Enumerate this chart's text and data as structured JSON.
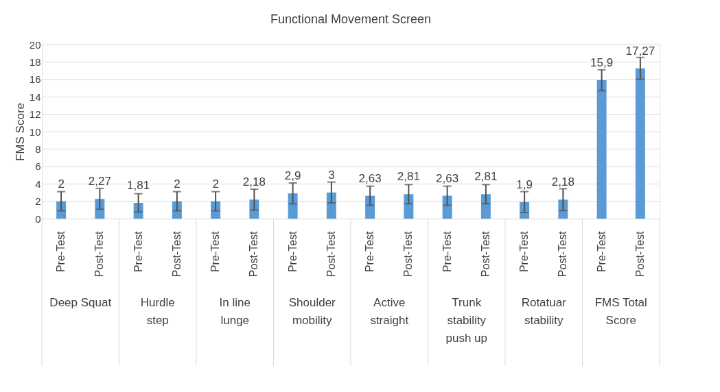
{
  "chart_data": {
    "type": "bar",
    "title": "Functional Movement Screen",
    "ylabel": "FMS Score",
    "categories": [
      "Pre-Test",
      "Post-Test",
      "Pre-Test",
      "Post-Test",
      "Pre-Test",
      "Post-Test",
      "Pre-Test",
      "Post-Test",
      "Pre-Test",
      "Post-Test",
      "Pre-Test",
      "Post-Test",
      "Pre-Test",
      "Post-Test",
      "Pre-Test",
      "Post-Test"
    ],
    "values": [
      2,
      2.27,
      1.81,
      2,
      2,
      2.18,
      2.9,
      3,
      2.63,
      2.81,
      2.63,
      2.81,
      1.9,
      2.18,
      15.9,
      17.27
    ],
    "value_labels": [
      "2",
      "2,27",
      "1,81",
      "2",
      "2",
      "2,18",
      "2,9",
      "3",
      "2,63",
      "2,81",
      "2,63",
      "2,81",
      "1,9",
      "2,18",
      "15,9",
      "17,27"
    ],
    "errors": [
      1.1,
      1.2,
      1.05,
      1.1,
      1.1,
      1.2,
      1.2,
      1.2,
      1.1,
      1.1,
      1.1,
      1.1,
      1.2,
      1.25,
      1.2,
      1.25
    ],
    "color": "#5b9bd5",
    "annotations": [
      "Deep Squat",
      "Hurdle step",
      "In line lunge",
      "Shoulder mobility",
      "Active straight",
      "Trunk stability push up",
      "Rotatuar stability",
      "FMS Total Score"
    ],
    "ylim": [
      0,
      20
    ],
    "yticks": [
      0,
      2,
      4,
      6,
      8,
      10,
      12,
      14,
      16,
      18,
      20
    ],
    "grid": true
  }
}
